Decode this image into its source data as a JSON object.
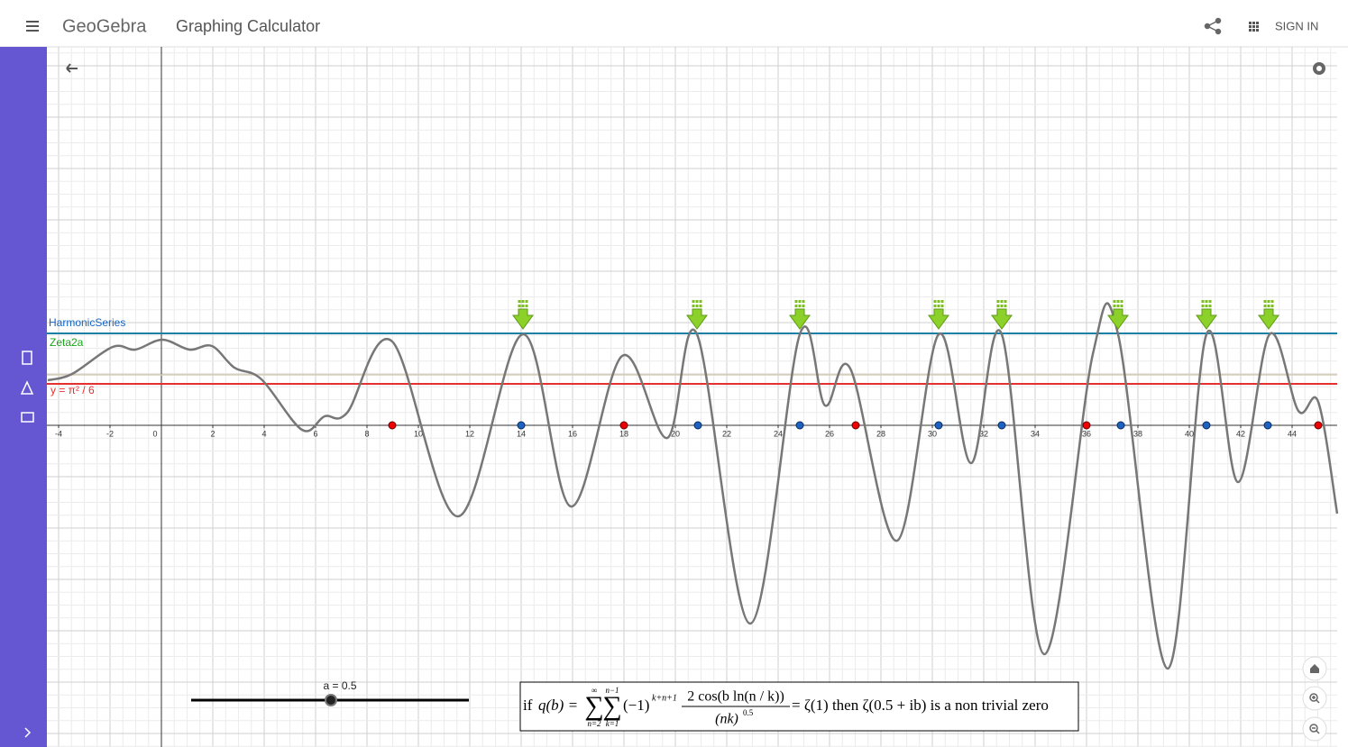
{
  "header": {
    "logo": "GeoGebra",
    "app_title": "Graphing Calculator",
    "sign_in": "SIGN IN"
  },
  "graph": {
    "x_axis_labels": [
      -4,
      -2,
      0,
      2,
      4,
      6,
      8,
      10,
      12,
      14,
      16,
      18,
      20,
      22,
      24,
      26,
      28,
      30,
      32,
      34,
      36,
      38,
      40,
      42,
      44
    ],
    "labels": {
      "harmonic": "HarmonicSeries",
      "zeta": "Zeta2a",
      "pi_line": "y = π² / 6"
    },
    "slider": "a = 0.5"
  },
  "formula": {
    "prefix": "if",
    "lhs": "q(b) =",
    "sum1_top": "∞",
    "sum1_bottom": "n=2",
    "sum2_top": "n−1",
    "sum2_bottom": "k=1",
    "sign": "(−1)",
    "sign_exp": "k+n+1",
    "numerator": "2 cos(b ln(n / k))",
    "denominator": "(nk)",
    "den_exp": "0.5",
    "rhs": "= ζ(1) then ζ(0.5 + ib) is a non trivial zero"
  }
}
